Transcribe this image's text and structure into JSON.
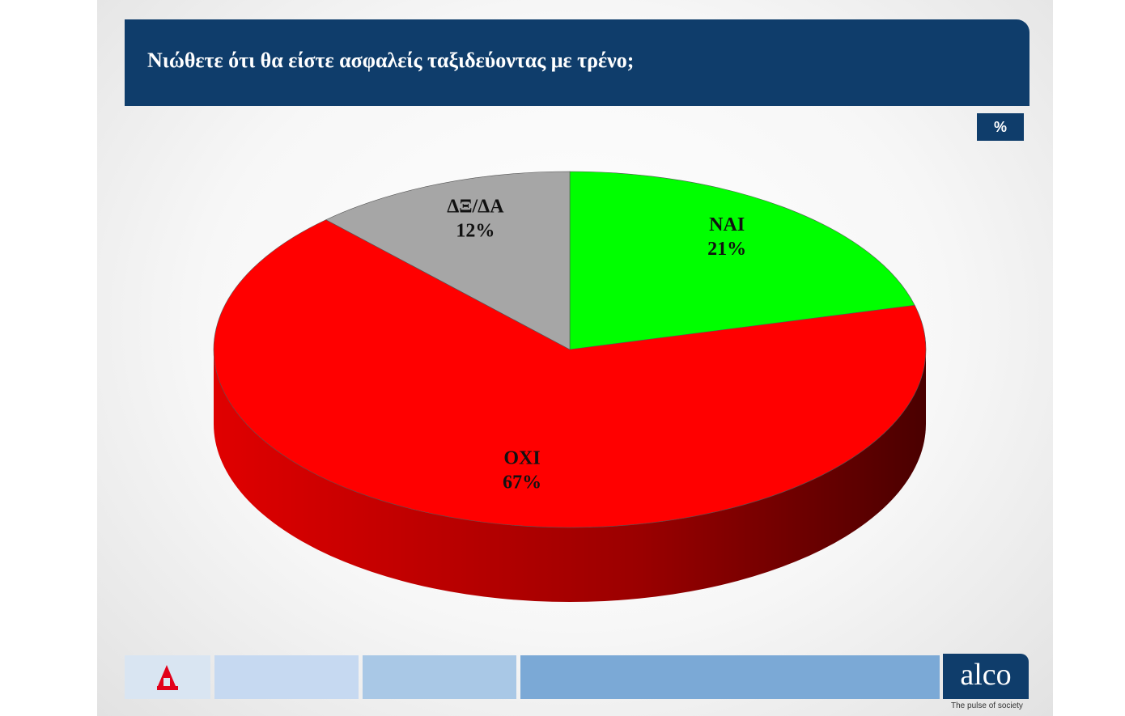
{
  "header": {
    "title": "Νιώθετε ότι θα είστε ασφαλείς ταξιδεύοντας με τρένο;",
    "unit": "%"
  },
  "chart_data": {
    "type": "pie",
    "title": "Νιώθετε ότι θα είστε ασφαλείς ταξιδεύοντας με τρένο;",
    "unit": "%",
    "slices": [
      {
        "label": "ΝΑΙ",
        "value": 21,
        "value_label": "21%",
        "color": "#00ff00",
        "side_color": "#00aa00"
      },
      {
        "label": "ΟΧΙ",
        "value": 67,
        "value_label": "67%",
        "color": "#ff0000",
        "side_color": "#b00000"
      },
      {
        "label": "ΔΞ/ΔΑ",
        "value": 12,
        "value_label": "12%",
        "color": "#a6a6a6",
        "side_color": "#6e6e6e"
      }
    ],
    "start": "12 o'clock, clockwise",
    "style": "3d"
  },
  "footer": {
    "brand": "alco",
    "tagline": "The pulse of society",
    "colors": [
      "#c6d9f1",
      "#a9c8e6",
      "#7ba9d6"
    ]
  }
}
